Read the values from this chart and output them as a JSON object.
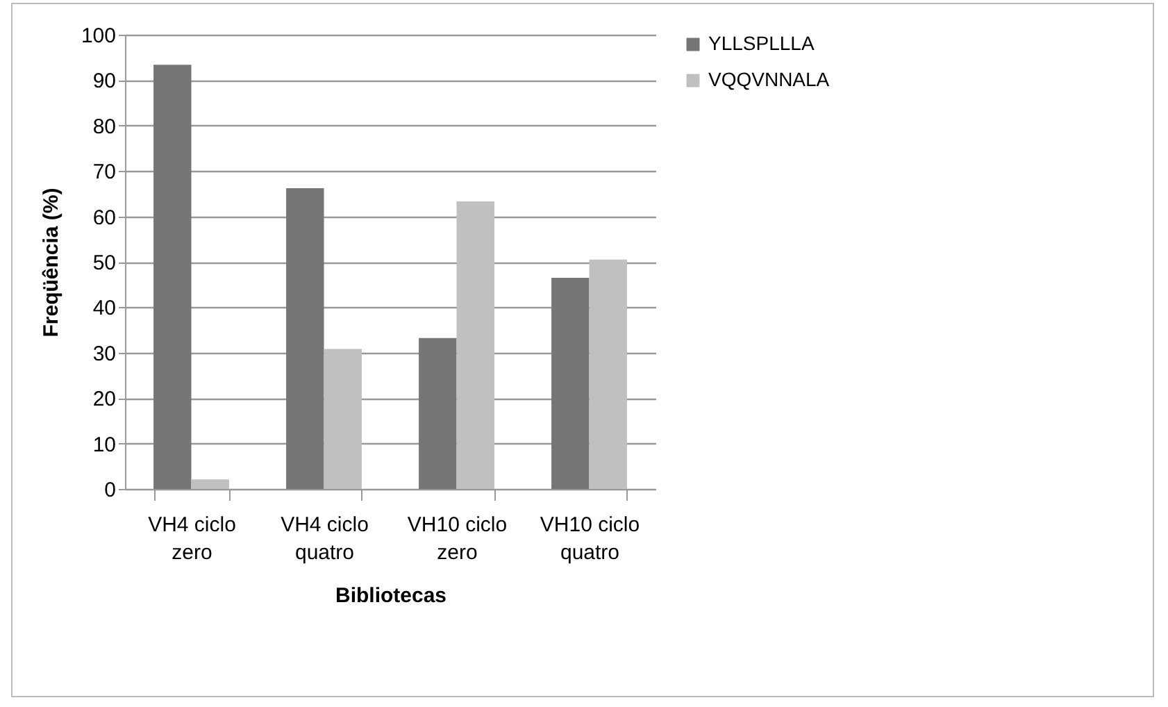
{
  "chart_data": {
    "type": "bar",
    "xlabel": "Bibliotecas",
    "ylabel": "Freqüência (%)",
    "categories": [
      "VH4 ciclo zero",
      "VH4 ciclo quatro",
      "VH10 ciclo zero",
      "VH10 ciclo quatro"
    ],
    "series": [
      {
        "name": "YLLSPLLLA",
        "color": "#767676",
        "values": [
          93.4,
          66.2,
          33.2,
          46.5
        ]
      },
      {
        "name": "VQQVNNALA",
        "color": "#c0c0c0",
        "values": [
          2.1,
          30.8,
          63.3,
          50.5
        ]
      }
    ],
    "ylim": [
      0,
      100
    ],
    "yticks": [
      0,
      10,
      20,
      30,
      40,
      50,
      60,
      70,
      80,
      90,
      100
    ],
    "grid": "y",
    "legend": "right"
  }
}
